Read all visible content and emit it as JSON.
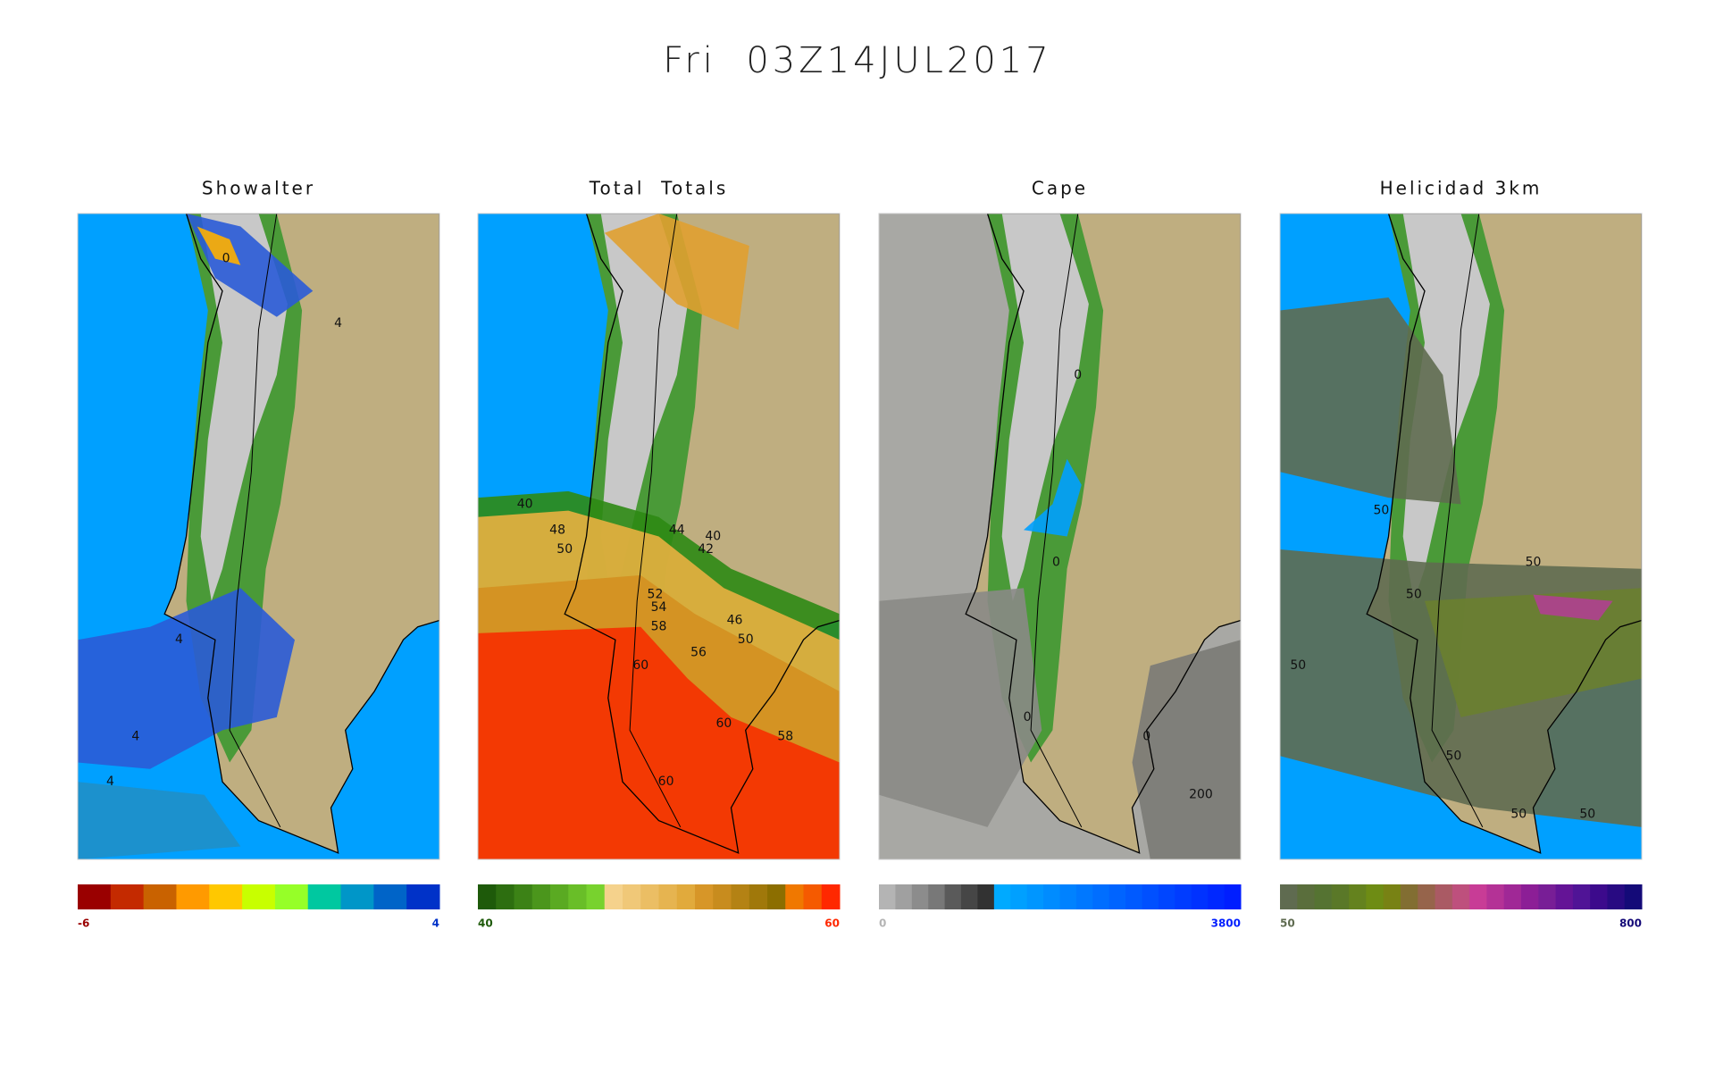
{
  "header": {
    "title": "Fri  03Z14JUL2017"
  },
  "panels": [
    {
      "title": "Showalter",
      "scale_min": "-6",
      "scale_max": "4",
      "colors": [
        "#9a0000",
        "#c42a00",
        "#c96200",
        "#ff9a00",
        "#ffc800",
        "#c8ff00",
        "#96ff28",
        "#00c8a0",
        "#0096c8",
        "#0064c8",
        "#0032c8"
      ],
      "contour_labels": [
        "0",
        "4",
        "4",
        "4",
        "4"
      ]
    },
    {
      "title": "Total  Totals",
      "scale_min": "40",
      "scale_max": "60",
      "colors": [
        "#1e5a0a",
        "#2d6e10",
        "#3c8216",
        "#4b961c",
        "#5aaa22",
        "#69be28",
        "#78d22e",
        "#f5d28c",
        "#f0c878",
        "#ebbe64",
        "#e6b450",
        "#e1aa3c",
        "#d79628",
        "#c88c1e",
        "#b48214",
        "#a0780a",
        "#8c6e00",
        "#f07800",
        "#f55a00",
        "#ff2800"
      ],
      "contour_labels": [
        "40",
        "48",
        "50",
        "44",
        "40",
        "42",
        "52",
        "54",
        "58",
        "60",
        "56",
        "46",
        "50",
        "60",
        "58",
        "60"
      ]
    },
    {
      "title": "Cape",
      "scale_min": "0",
      "scale_max": "3800",
      "colors": [
        "#b4b4b4",
        "#a0a0a0",
        "#8c8c8c",
        "#787878",
        "#5a5a5a",
        "#464646",
        "#323232",
        "#00aaff",
        "#00a0ff",
        "#0096ff",
        "#008cff",
        "#0082ff",
        "#0078ff",
        "#006eff",
        "#0064ff",
        "#005aff",
        "#0050ff",
        "#0046ff",
        "#003cff",
        "#0032ff",
        "#0028ff",
        "#001eff"
      ],
      "contour_labels": [
        "0",
        "0",
        "0",
        "0",
        "200"
      ]
    },
    {
      "title": "Helicidad 3km",
      "scale_min": "50",
      "scale_max": "800",
      "colors": [
        "#5f6b50",
        "#5a6e3c",
        "#557332",
        "#5a7828",
        "#64821e",
        "#6e8c14",
        "#788214",
        "#826e32",
        "#96644b",
        "#aa5a64",
        "#be507d",
        "#c83c96",
        "#b43296",
        "#a02896",
        "#8c1e96",
        "#781e96",
        "#641496",
        "#501496",
        "#3c0a8c",
        "#280a82",
        "#140a78"
      ],
      "contour_labels": [
        "50",
        "50",
        "50",
        "50",
        "50",
        "50",
        "50"
      ]
    }
  ]
}
